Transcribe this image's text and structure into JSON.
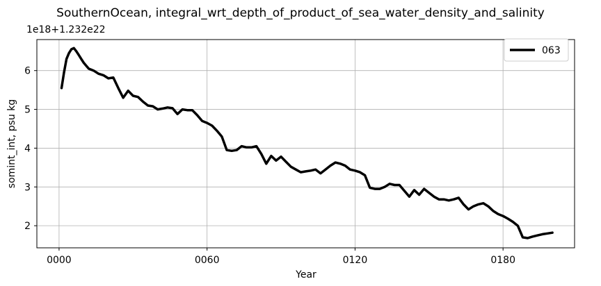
{
  "chart_data": {
    "type": "line",
    "title": "SouthernOcean, integral_wrt_depth_of_product_of_sea_water_density_and_salinity",
    "xlabel": "Year",
    "ylabel": "somint_int, psu kg",
    "offset_text": "1e18+1.232e22",
    "xlim": [
      -9,
      209
    ],
    "ylim": [
      1.43,
      6.8
    ],
    "grid": true,
    "legend_position": "top-right",
    "x_ticks": [
      0,
      60,
      120,
      180
    ],
    "x_tick_labels": [
      "0000",
      "0060",
      "0120",
      "0180"
    ],
    "y_ticks": [
      2,
      3,
      4,
      5,
      6
    ],
    "y_tick_labels": [
      "2",
      "3",
      "4",
      "5",
      "6"
    ],
    "series": [
      {
        "name": "063",
        "color": "#000000",
        "x": [
          1,
          2,
          3,
          4,
          5,
          6,
          7,
          8,
          9,
          10,
          12,
          14,
          16,
          18,
          20,
          22,
          24,
          26,
          28,
          30,
          32,
          34,
          36,
          38,
          40,
          42,
          44,
          46,
          48,
          50,
          52,
          54,
          56,
          58,
          60,
          62,
          64,
          66,
          68,
          70,
          72,
          74,
          76,
          78,
          80,
          82,
          84,
          86,
          88,
          90,
          92,
          94,
          96,
          98,
          100,
          102,
          104,
          106,
          108,
          110,
          112,
          114,
          116,
          118,
          120,
          122,
          124,
          126,
          128,
          130,
          132,
          134,
          136,
          138,
          140,
          142,
          144,
          146,
          148,
          150,
          152,
          154,
          156,
          158,
          160,
          162,
          164,
          166,
          168,
          170,
          172,
          174,
          176,
          178,
          180,
          182,
          184,
          186,
          188,
          190,
          192,
          194,
          196,
          198,
          200
        ],
        "values": [
          5.55,
          5.95,
          6.3,
          6.45,
          6.55,
          6.58,
          6.5,
          6.4,
          6.3,
          6.2,
          6.05,
          6.0,
          5.92,
          5.88,
          5.8,
          5.82,
          5.55,
          5.3,
          5.48,
          5.35,
          5.32,
          5.2,
          5.1,
          5.08,
          5.0,
          5.02,
          5.05,
          5.03,
          4.88,
          5.0,
          4.98,
          4.98,
          4.85,
          4.7,
          4.65,
          4.58,
          4.45,
          4.3,
          3.95,
          3.93,
          3.95,
          4.05,
          4.02,
          4.02,
          4.05,
          3.85,
          3.6,
          3.8,
          3.68,
          3.78,
          3.65,
          3.52,
          3.45,
          3.38,
          3.4,
          3.42,
          3.45,
          3.35,
          3.45,
          3.55,
          3.63,
          3.6,
          3.55,
          3.45,
          3.42,
          3.38,
          3.3,
          2.98,
          2.95,
          2.95,
          3.0,
          3.08,
          3.05,
          3.05,
          2.9,
          2.75,
          2.92,
          2.8,
          2.95,
          2.85,
          2.75,
          2.68,
          2.68,
          2.65,
          2.68,
          2.72,
          2.55,
          2.42,
          2.5,
          2.55,
          2.58,
          2.5,
          2.38,
          2.3,
          2.25,
          2.18,
          2.1,
          2.0,
          1.7,
          1.68,
          1.72,
          1.75,
          1.78,
          1.8,
          1.82
        ]
      }
    ]
  }
}
